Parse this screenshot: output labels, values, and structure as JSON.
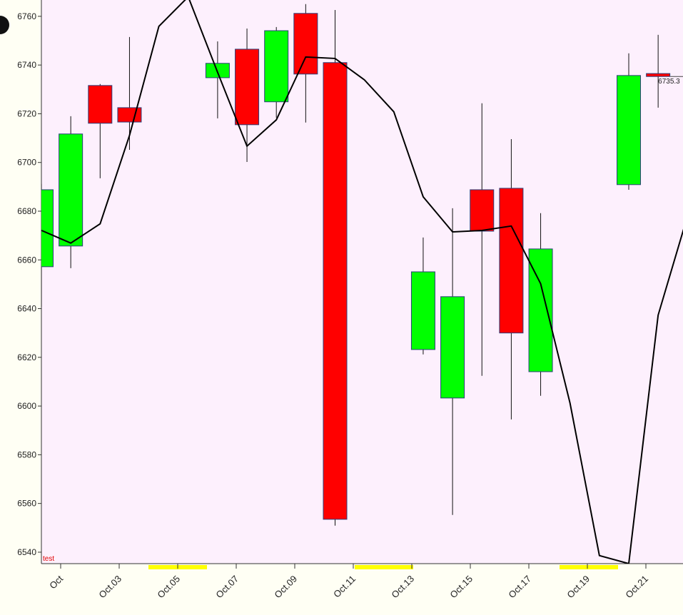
{
  "chart_data": {
    "type": "candlestick",
    "ylim": [
      6535.3,
      6766.7
    ],
    "yticks": [
      6540,
      6560,
      6580,
      6600,
      6620,
      6640,
      6660,
      6680,
      6700,
      6720,
      6740,
      6760
    ],
    "x_labels": [
      "Oct",
      "Oct.03",
      "Oct.05",
      "Oct.07",
      "Oct.09",
      "Oct.11",
      "Oct.13",
      "Oct.15",
      "Oct.17",
      "Oct.19",
      "Oct.21"
    ],
    "annotation": "test",
    "up_color": "#00ff00",
    "down_color": "#ff0000",
    "open": [
      6657.2,
      6665.7,
      6731.6,
      6722.5,
      null,
      null,
      6734.8,
      6746.5,
      6724.9,
      6761.2,
      6741.0,
      null,
      null,
      6623.2,
      6603.3,
      6688.8,
      6689.4,
      6614.1,
      null,
      null,
      6690.9,
      6736.5,
      null
    ],
    "high": [
      6691.2,
      6719.0,
      6732.2,
      6751.5,
      null,
      null,
      6749.7,
      6755.0,
      6755.6,
      6765.0,
      6762.6,
      null,
      null,
      6669.2,
      6681.2,
      6724.3,
      6709.6,
      6679.2,
      null,
      null,
      6744.8,
      6752.4,
      null
    ],
    "low": [
      6640.8,
      6656.6,
      6693.5,
      6705.2,
      null,
      null,
      6718.1,
      6700.2,
      6718.4,
      6716.4,
      6550.9,
      null,
      null,
      6621.2,
      6555.3,
      6612.4,
      6594.5,
      6604.2,
      null,
      null,
      6688.8,
      6722.5,
      null
    ],
    "close": [
      6688.8,
      6711.7,
      6716.1,
      6716.6,
      null,
      null,
      6740.7,
      6715.5,
      6754.1,
      6736.3,
      6553.5,
      null,
      null,
      6655.1,
      6644.9,
      6671.8,
      6630.0,
      6664.5,
      null,
      null,
      6735.7,
      6735.3,
      null
    ],
    "line": {
      "color": "#000000",
      "values": [
        6672.1,
        6666.9,
        6674.8,
        6711.1,
        6755.9,
        6768.0,
        6737.0,
        6706.7,
        6717.5,
        6743.3,
        6742.7,
        6733.9,
        6720.8,
        6685.9,
        6671.5,
        6672.1,
        6673.9,
        6650.2,
        6601.2,
        6538.6,
        6535.3,
        6637.3,
        6678.0
      ]
    }
  }
}
